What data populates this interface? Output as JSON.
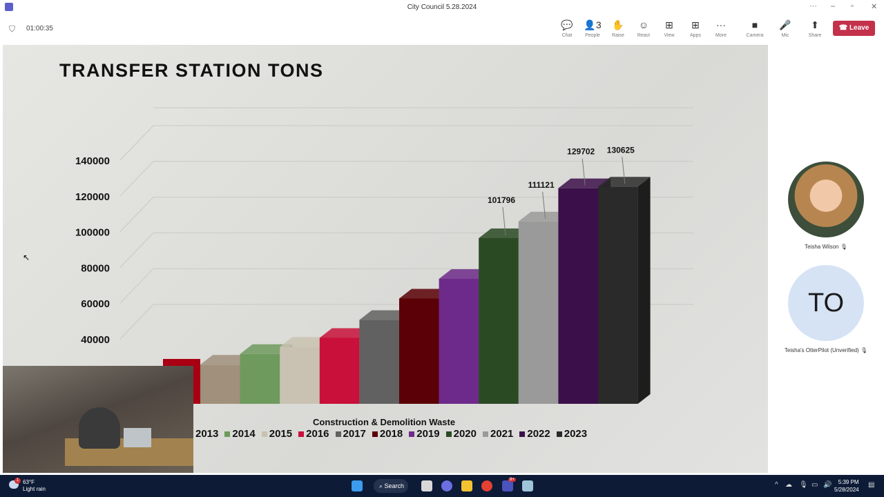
{
  "window": {
    "title": "City Council 5.28.2024"
  },
  "meeting": {
    "timer": "01:00:35",
    "people_count": "3"
  },
  "toolbar": {
    "buttons": [
      {
        "label": "Chat",
        "icon": "chat-icon",
        "glyph": "💬"
      },
      {
        "label": "People",
        "icon": "people-icon",
        "glyph": "👤"
      },
      {
        "label": "Raise",
        "icon": "hand-icon",
        "glyph": "✋"
      },
      {
        "label": "React",
        "icon": "smile-icon",
        "glyph": "☺"
      },
      {
        "label": "View",
        "icon": "grid-icon",
        "glyph": "⊞"
      },
      {
        "label": "Apps",
        "icon": "plus-box-icon",
        "glyph": "⊞"
      },
      {
        "label": "More",
        "icon": "ellipsis-icon",
        "glyph": "···"
      },
      {
        "label": "Camera",
        "icon": "camera-icon",
        "glyph": "■"
      },
      {
        "label": "Mic",
        "icon": "mic-icon",
        "glyph": "🎤"
      },
      {
        "label": "Share",
        "icon": "share-icon",
        "glyph": "⬆"
      }
    ],
    "leave_label": "Leave",
    "leave_color": "#c4314b"
  },
  "slide": {
    "title": "TRANSFER STATION TONS",
    "legend_title": "Construction & Demolition Waste"
  },
  "chart_data": {
    "type": "bar",
    "title": "TRANSFER STATION TONS",
    "xlabel": "Construction & Demolition Waste",
    "ylabel": "",
    "y_ticks": [
      "40000",
      "60000",
      "80000",
      "100000",
      "120000",
      "140000"
    ],
    "ylim": [
      0,
      150000
    ],
    "grid": true,
    "legend": "bottom",
    "series": [
      {
        "name": "2013",
        "value": 31000,
        "color": "#a0907c"
      },
      {
        "name": "2014",
        "value": 37000,
        "color": "#6f9a5e"
      },
      {
        "name": "2015",
        "value": 41000,
        "color": "#c9c2b2"
      },
      {
        "name": "2016",
        "value": 46000,
        "color": "#c8103a"
      },
      {
        "name": "2017",
        "value": 56000,
        "color": "#616161"
      },
      {
        "name": "2018",
        "value": 68000,
        "color": "#5a0006"
      },
      {
        "name": "2019",
        "value": 79000,
        "color": "#6e2a8a"
      },
      {
        "name": "2020",
        "value": 101796,
        "color": "#2a4a24",
        "label": "101796"
      },
      {
        "name": "2021",
        "value": 111121,
        "color": "#9a9a9a",
        "label": "111121"
      },
      {
        "name": "2022",
        "value": 129702,
        "color": "#3b0f4a",
        "label": "129702"
      },
      {
        "name": "2023",
        "value": 130625,
        "color": "#2a2a2a",
        "label": "130625"
      }
    ]
  },
  "participants": [
    {
      "name": "Teisha Wilson",
      "muted": true
    },
    {
      "name": "Teisha's OtterPilot (Unverified)",
      "initials": "TO",
      "muted": true
    }
  ],
  "taskbar": {
    "weather_temp": "63°F",
    "weather_desc": "Light rain",
    "weather_badge": "1",
    "search_label": "Search",
    "teams_badge": "9+",
    "time": "5:39 PM",
    "date": "5/28/2024"
  }
}
